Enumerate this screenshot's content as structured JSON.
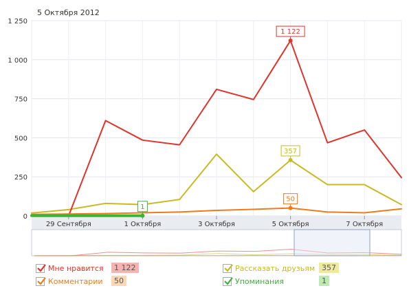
{
  "header": {
    "date_title": "5 Октября 2012"
  },
  "chart_data": {
    "type": "line",
    "title": "5 Октября 2012",
    "x": [
      "28.09",
      "29.09",
      "30.09",
      "01.10",
      "02.10",
      "03.10",
      "04.10",
      "05.10",
      "06.10",
      "07.10",
      "08.10"
    ],
    "x_tick_labels": [
      "29 Сентября",
      "1 Октября",
      "3 Октября",
      "5 Октября",
      "7 Октября"
    ],
    "x_tick_indices": [
      1,
      3,
      5,
      7,
      9
    ],
    "ylim": [
      0,
      1250
    ],
    "y_ticks": [
      0,
      250,
      500,
      750,
      1000,
      1250
    ],
    "y_tick_labels": [
      "0",
      "250",
      "500",
      "750",
      "1 000",
      "1 250"
    ],
    "grid": true,
    "series": [
      {
        "name": "Мне нравится",
        "color": "#e0332b",
        "values": [
          0,
          0,
          610,
          485,
          455,
          810,
          745,
          1122,
          468,
          550,
          245
        ]
      },
      {
        "name": "Рассказать друзьям",
        "color": "#c9b923",
        "values": [
          18,
          40,
          80,
          72,
          105,
          395,
          155,
          357,
          200,
          200,
          72
        ]
      },
      {
        "name": "Комментарии",
        "color": "#ef7a1a",
        "values": [
          10,
          12,
          15,
          20,
          25,
          35,
          42,
          50,
          25,
          20,
          45
        ]
      },
      {
        "name": "Упоминания",
        "color": "#3fb13b",
        "values": [
          1,
          1,
          1,
          1,
          null,
          null,
          null,
          null,
          null,
          null,
          null
        ]
      }
    ],
    "flags": [
      {
        "label": "1 122",
        "series": 0,
        "index": 7,
        "color": "#e0332b"
      },
      {
        "label": "357",
        "series": 1,
        "index": 7,
        "color": "#c9b923"
      },
      {
        "label": "50",
        "series": 2,
        "index": 7,
        "color": "#ef7a1a"
      },
      {
        "label": "1",
        "series": 3,
        "index": 3,
        "color": "#3fb13b"
      }
    ],
    "legend": [
      {
        "name": "Мне нравится",
        "value": "1 122",
        "color": "#e0332b",
        "badge": "#f6b3b0"
      },
      {
        "name": "Рассказать друзьям",
        "value": "357",
        "color": "#c9b923",
        "badge": "#eee9a2"
      },
      {
        "name": "Комментарии",
        "value": "50",
        "color": "#ef7a1a",
        "badge": "#f9d8b3"
      },
      {
        "name": "Упоминания",
        "value": "1",
        "color": "#3fb13b",
        "badge": "#bdeab3"
      }
    ]
  }
}
